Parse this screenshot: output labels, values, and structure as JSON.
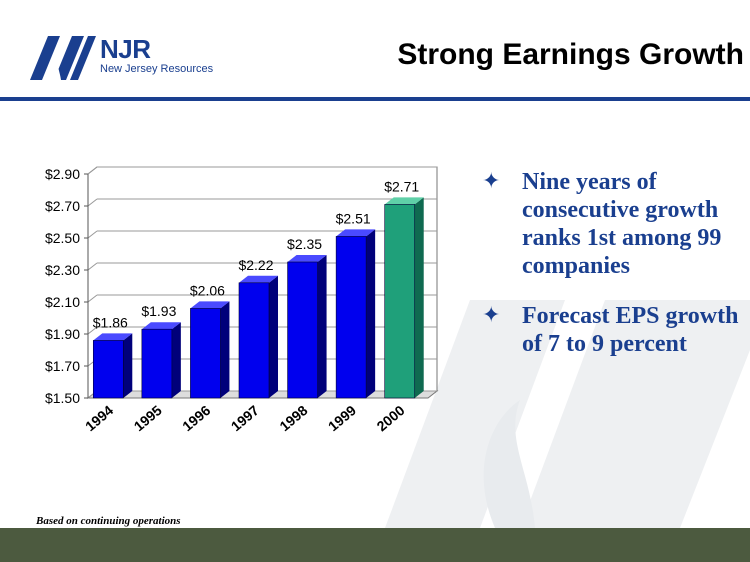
{
  "header": {
    "logo_name": "NJR",
    "logo_subtitle": "New Jersey Resources",
    "title": "Strong Earnings Growth"
  },
  "bullets": [
    {
      "text": "Nine years of consecutive growth ranks 1st among 99 companies"
    },
    {
      "text": "Forecast EPS growth of 7 to 9 percent"
    }
  ],
  "footnote": "Based on continuing operations",
  "colors": {
    "brand_blue": "#1a3f8f",
    "bar_blue": "#0000ee",
    "bar_highlight": "#1fa07a",
    "footer_band": "#4c5a3f"
  },
  "chart_data": {
    "type": "bar",
    "title": "",
    "xlabel": "",
    "ylabel": "",
    "categories": [
      "1994",
      "1995",
      "1996",
      "1997",
      "1998",
      "1999",
      "2000"
    ],
    "values": [
      1.86,
      1.93,
      2.06,
      2.22,
      2.35,
      2.51,
      2.71
    ],
    "data_labels": [
      "$1.86",
      "$1.93",
      "$2.06",
      "$2.22",
      "$2.35",
      "$2.51",
      "$2.71"
    ],
    "highlight_index": 6,
    "ylim": [
      1.5,
      2.9
    ],
    "y_ticks": [
      1.5,
      1.7,
      1.9,
      2.1,
      2.3,
      2.5,
      2.7,
      2.9
    ],
    "y_tick_labels": [
      "$1.50",
      "$1.70",
      "$1.90",
      "$2.10",
      "$2.30",
      "$2.50",
      "$2.70",
      "$2.90"
    ],
    "grid": true,
    "legend": "none"
  }
}
